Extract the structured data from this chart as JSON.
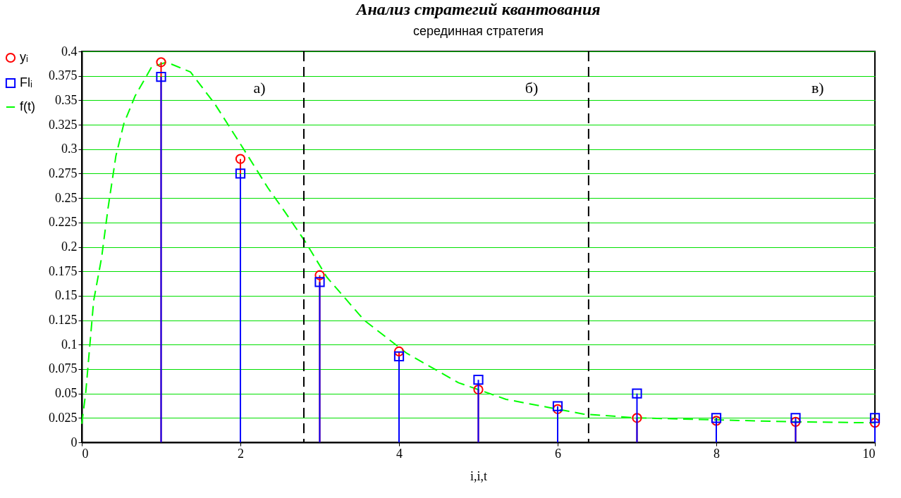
{
  "chart_data": {
    "type": "line",
    "title": "Анализ стратегий квантования",
    "subtitle": "серединная стратегия",
    "xlabel": "i,i,t",
    "xlim": [
      0,
      10
    ],
    "xticks": [
      0,
      2,
      4,
      6,
      8,
      10
    ],
    "ylim": [
      0,
      0.4
    ],
    "yticks": [
      0,
      0.025,
      0.05,
      0.075,
      0.1,
      0.125,
      0.15,
      0.175,
      0.2,
      0.225,
      0.25,
      0.275,
      0.3,
      0.325,
      0.35,
      0.375,
      0.4
    ],
    "grid": "y",
    "legend": "left",
    "series": [
      {
        "name": "yᵢ",
        "type": "lollipop",
        "marker": "circle",
        "color": "#ff0000",
        "x": [
          1,
          2,
          3,
          4,
          5,
          6,
          7,
          8,
          9,
          10
        ],
        "values": [
          0.389,
          0.29,
          0.171,
          0.093,
          0.054,
          0.034,
          0.025,
          0.022,
          0.021,
          0.02
        ]
      },
      {
        "name": "Flᵢ",
        "type": "lollipop",
        "marker": "square",
        "color": "#0000ff",
        "x": [
          1,
          2,
          3,
          4,
          5,
          6,
          7,
          8,
          9,
          10
        ],
        "values": [
          0.374,
          0.275,
          0.164,
          0.088,
          0.064,
          0.037,
          0.05,
          0.025,
          0.025,
          0.025
        ]
      },
      {
        "name": "f(t)",
        "marker": "none",
        "line_style": "dashed",
        "color": "#00ff00",
        "x": [
          0,
          0.05,
          0.15,
          0.25,
          0.33,
          0.43,
          0.53,
          0.67,
          0.88,
          1.07,
          1.37,
          1.68,
          2.01,
          2.35,
          2.56,
          2.82,
          3.09,
          3.56,
          4.1,
          4.75,
          5.35,
          6.32,
          7.01,
          8,
          9,
          10
        ],
        "values": [
          0.019,
          0.051,
          0.145,
          0.189,
          0.239,
          0.293,
          0.326,
          0.354,
          0.384,
          0.389,
          0.379,
          0.346,
          0.304,
          0.26,
          0.236,
          0.205,
          0.169,
          0.125,
          0.091,
          0.061,
          0.044,
          0.029,
          0.025,
          0.023,
          0.021,
          0.02
        ]
      }
    ],
    "ref_lines": [
      {
        "axis": "x",
        "value": 2.8,
        "color": "#000000",
        "line_style": "dashed"
      },
      {
        "axis": "x",
        "value": 6.39,
        "color": "#000000",
        "line_style": "dashed"
      }
    ],
    "annotations": [
      "а)",
      "б)",
      "в)"
    ]
  }
}
